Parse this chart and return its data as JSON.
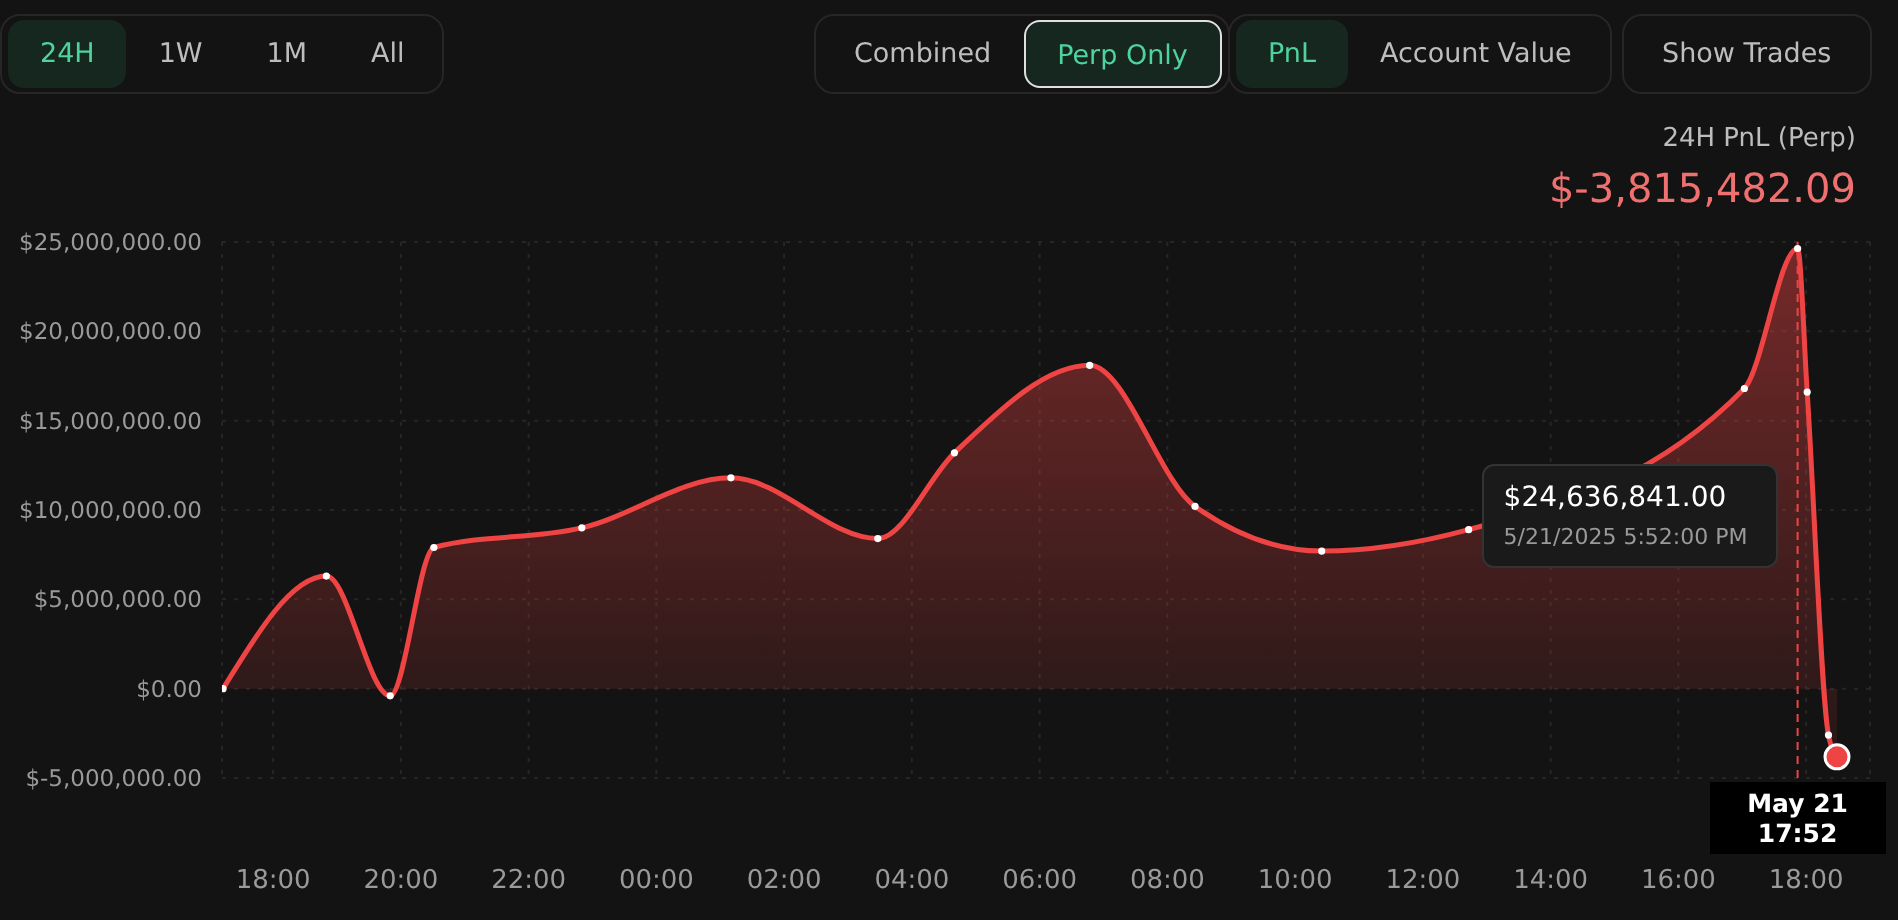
{
  "chart_data": {
    "type": "area",
    "title": "24H PnL (Perp)",
    "subtitle": "$-3,815,482.09",
    "annotations": [
      "24H",
      "1W",
      "1M",
      "All",
      "Combined",
      "Perp Only",
      "PnL",
      "Account Value",
      "Show Trades",
      "$24,636,841.00",
      "5/21/2025 5:52:00 PM"
    ],
    "x": [
      "2025-05-20T17:13",
      "2025-05-20T18:50",
      "2025-05-20T19:50",
      "2025-05-20T20:31",
      "2025-05-20T22:50",
      "2025-05-21T01:10",
      "2025-05-21T03:28",
      "2025-05-21T04:40",
      "2025-05-21T06:47",
      "2025-05-21T08:26",
      "2025-05-21T10:25",
      "2025-05-21T12:43",
      "2025-05-21T17:02",
      "2025-05-21T17:52",
      "2025-05-21T18:01",
      "2025-05-21T18:21",
      "2025-05-21T18:29"
    ],
    "series": [
      {
        "color": "#ef4444",
        "values": [
          0,
          6300000,
          -400000,
          7900000,
          9000000,
          11800000,
          8400000,
          13200000,
          18100000,
          10200000,
          7700000,
          8900000,
          16800000,
          24636841,
          16600000,
          -2600000,
          -3815482
        ]
      }
    ],
    "xlim": [
      "2025-05-20T17:12",
      "2025-05-21T19:00"
    ],
    "xticks": [
      {
        "value": "2025-05-20T18:00",
        "label": "18:00"
      },
      {
        "value": "2025-05-20T20:00",
        "label": "20:00"
      },
      {
        "value": "2025-05-20T22:00",
        "label": "22:00"
      },
      {
        "value": "2025-05-21T00:00",
        "label": "00:00"
      },
      {
        "value": "2025-05-21T02:00",
        "label": "02:00"
      },
      {
        "value": "2025-05-21T04:00",
        "label": "04:00"
      },
      {
        "value": "2025-05-21T06:00",
        "label": "06:00"
      },
      {
        "value": "2025-05-21T08:00",
        "label": "08:00"
      },
      {
        "value": "2025-05-21T10:00",
        "label": "10:00"
      },
      {
        "value": "2025-05-21T12:00",
        "label": "12:00"
      },
      {
        "value": "2025-05-21T14:00",
        "label": "14:00"
      },
      {
        "value": "2025-05-21T16:00",
        "label": "16:00"
      },
      {
        "value": "2025-05-21T18:00",
        "label": "18:00"
      }
    ],
    "ylim": [
      -5000000,
      25000000
    ],
    "yticks": [
      {
        "value": -5000000,
        "label": "$-5,000,000.00"
      },
      {
        "value": 0,
        "label": "$0.00"
      },
      {
        "value": 5000000,
        "label": "$5,000,000.00"
      },
      {
        "value": 10000000,
        "label": "$10,000,000.00"
      },
      {
        "value": 15000000,
        "label": "$15,000,000.00"
      },
      {
        "value": 20000000,
        "label": "$20,000,000.00"
      },
      {
        "value": 25000000,
        "label": "$25,000,000.00"
      }
    ],
    "ref_lines": [
      {
        "axis": "x",
        "value": "2025-05-21T17:52",
        "label": "May 21 17:52",
        "color": "#ef4444",
        "line_style": "dashed"
      }
    ],
    "grid": true,
    "marker": "circle"
  }
}
